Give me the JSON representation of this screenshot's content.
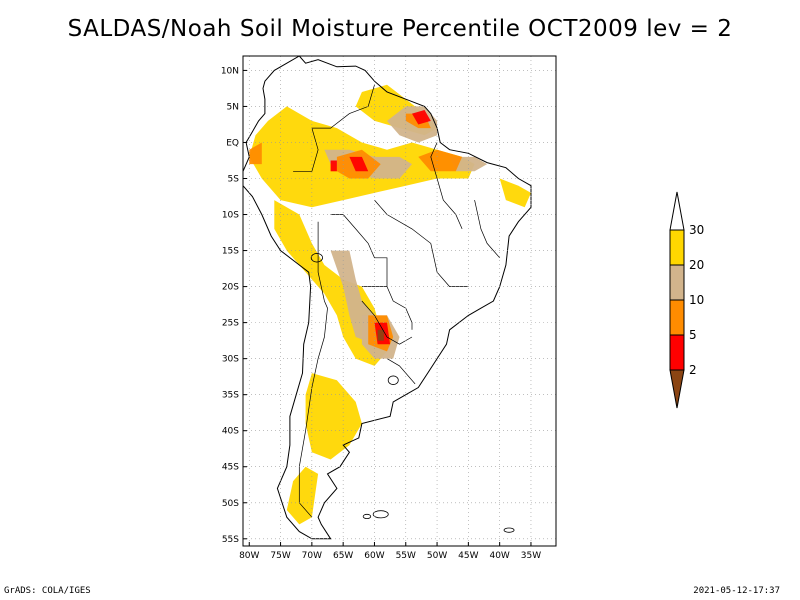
{
  "title": "SALDAS/Noah Soil Moisture Percentile OCT2009 lev = 2",
  "footer": {
    "left": "GrADS: COLA/IGES",
    "right": "2021-05-12-17:37"
  },
  "map_data": {
    "region": "South America",
    "lon_range": [
      -81,
      -31
    ],
    "lat_range": [
      -56,
      12
    ],
    "lon_ticks": [
      {
        "value": -80,
        "label": "80W"
      },
      {
        "value": -75,
        "label": "75W"
      },
      {
        "value": -70,
        "label": "70W"
      },
      {
        "value": -65,
        "label": "65W"
      },
      {
        "value": -60,
        "label": "60W"
      },
      {
        "value": -55,
        "label": "55W"
      },
      {
        "value": -50,
        "label": "50W"
      },
      {
        "value": -45,
        "label": "45W"
      },
      {
        "value": -40,
        "label": "40W"
      },
      {
        "value": -35,
        "label": "35W"
      }
    ],
    "lat_ticks": [
      {
        "value": 10,
        "label": "10N"
      },
      {
        "value": 5,
        "label": "5N"
      },
      {
        "value": 0,
        "label": "EQ"
      },
      {
        "value": -5,
        "label": "5S"
      },
      {
        "value": -10,
        "label": "10S"
      },
      {
        "value": -15,
        "label": "15S"
      },
      {
        "value": -20,
        "label": "20S"
      },
      {
        "value": -25,
        "label": "25S"
      },
      {
        "value": -30,
        "label": "30S"
      },
      {
        "value": -35,
        "label": "35S"
      },
      {
        "value": -40,
        "label": "40S"
      },
      {
        "value": -45,
        "label": "45S"
      },
      {
        "value": -50,
        "label": "50S"
      },
      {
        "value": -55,
        "label": "55S"
      }
    ],
    "grid": true,
    "legend": {
      "placement": "right",
      "boundaries": [
        "2",
        "5",
        "10",
        "20",
        "30"
      ],
      "colors": {
        "below_2": "#8b4513",
        "2_5": "#ff0000",
        "5_10": "#ff8c00",
        "10_20": "#d2b48c",
        "20_30": "#ffd700",
        "above_30": "#ffffff"
      }
    },
    "colors": {
      "coast": "#000000",
      "grid": "#999999"
    }
  }
}
